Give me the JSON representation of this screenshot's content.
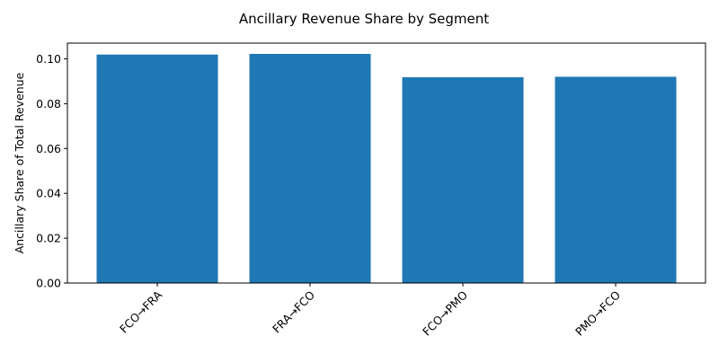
{
  "chart_data": {
    "type": "bar",
    "title": "Ancillary Revenue Share by Segment",
    "xlabel": "",
    "ylabel": "Ancillary Share of Total Revenue",
    "categories": [
      "FCO→FRA",
      "FRA→FCO",
      "FCO→PMO",
      "PMO→FCO"
    ],
    "values": [
      0.1019,
      0.1022,
      0.0918,
      0.092
    ],
    "ylim": [
      0,
      0.107
    ],
    "yticks": [
      "0.00",
      "0.02",
      "0.04",
      "0.06",
      "0.08",
      "0.10"
    ],
    "ytick_values": [
      0,
      0.02,
      0.04,
      0.06,
      0.08,
      0.1
    ],
    "bar_color": "#1f77b4",
    "grid": false,
    "legend": "none"
  }
}
